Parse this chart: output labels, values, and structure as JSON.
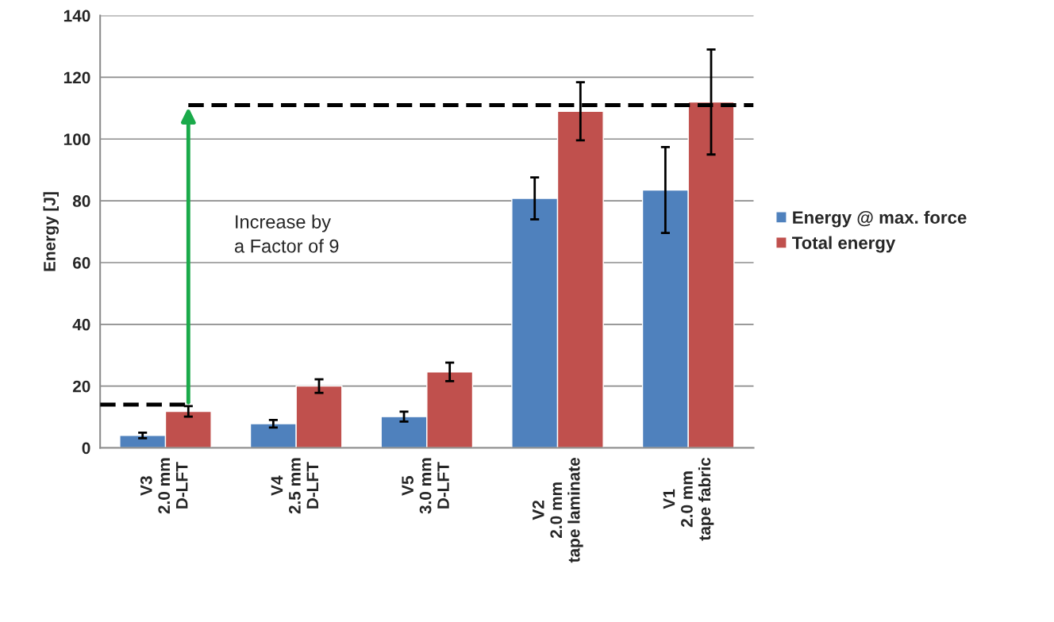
{
  "chart_data": {
    "type": "bar",
    "ylabel": "Energy [J]",
    "categories": [
      "V3\n2.0 mm\nD-LFT",
      "V4\n2.5 mm\nD-LFT",
      "V5\n3.0 mm\nD-LFT",
      "V2\n2.0 mm\ntape laminate",
      "V1\n2.0 mm\ntape fabric"
    ],
    "series": [
      {
        "name": "Energy @ max. force",
        "color": "#4f81bd",
        "values": [
          4.0,
          7.8,
          10.1,
          80.8,
          83.5
        ],
        "errors": [
          0.9,
          1.2,
          1.6,
          6.8,
          13.9
        ]
      },
      {
        "name": "Total energy",
        "color": "#c0504d",
        "values": [
          11.8,
          20.0,
          24.6,
          109.0,
          112.0
        ],
        "errors": [
          1.7,
          2.2,
          3.0,
          9.4,
          17.0
        ]
      }
    ],
    "ylim": [
      0,
      140
    ],
    "yticks": [
      0,
      20,
      40,
      60,
      80,
      100,
      120,
      140
    ],
    "ref_lines": [
      {
        "axis": "y",
        "value": 14,
        "color": "#000000",
        "line_style": "dashed"
      },
      {
        "axis": "y",
        "value": 111,
        "color": "#000000",
        "line_style": "dashed"
      }
    ],
    "annotations": [
      "Increase by\na Factor of 9"
    ],
    "grid": "y",
    "legend": "right"
  }
}
